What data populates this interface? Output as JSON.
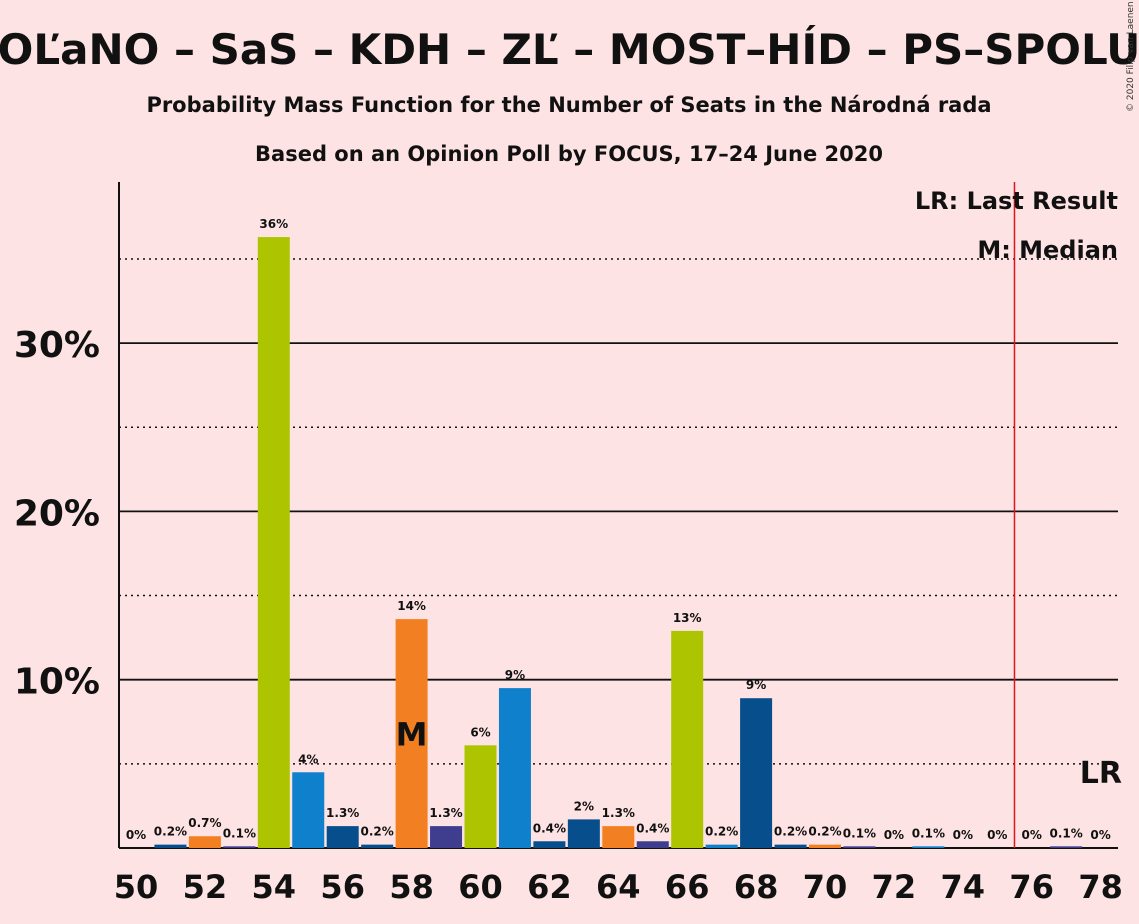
{
  "title": "OĽaNO – SaS – KDH – ZĽ – MOST–HÍD – PS–SPOLU",
  "subtitle": "Probability Mass Function for the Number of Seats in the Národná rada",
  "subtitle2": "Based on an Opinion Poll by FOCUS, 17–24 June 2020",
  "copyright": "© 2020 Filip van Laenen",
  "legend": {
    "lr": "LR: Last Result",
    "median": "M: Median"
  },
  "median_marker": "M",
  "last_result_marker": "LR",
  "colors": {
    "background": "#fde3e3",
    "lime": "#acc500",
    "blue": "#0f80cc",
    "navy": "#064f8c",
    "orange": "#f28022",
    "purple": "#3f3d8e",
    "lr_line": "#e0141c"
  },
  "chart_data": {
    "type": "bar",
    "xlabel": "",
    "ylabel": "",
    "ylim": [
      0,
      39
    ],
    "y_ticks": [
      {
        "value": 10,
        "label": "10%"
      },
      {
        "value": 20,
        "label": "20%"
      },
      {
        "value": 30,
        "label": "30%"
      }
    ],
    "y_dotted": [
      5,
      15,
      25,
      35
    ],
    "x_ticks": [
      "50",
      "52",
      "54",
      "56",
      "58",
      "60",
      "62",
      "64",
      "66",
      "68",
      "70",
      "72",
      "74",
      "76",
      "78"
    ],
    "median_seat": 58,
    "last_result_seat": 75.5,
    "bars": [
      {
        "seat": 50,
        "value": 0,
        "label": "0%",
        "color": "lime"
      },
      {
        "seat": 51,
        "value": 0.2,
        "label": "0.2%",
        "color": "navy"
      },
      {
        "seat": 52,
        "value": 0.7,
        "label": "0.7%",
        "color": "orange"
      },
      {
        "seat": 53,
        "value": 0.1,
        "label": "0.1%",
        "color": "purple"
      },
      {
        "seat": 54,
        "value": 36.3,
        "label": "36%",
        "color": "lime"
      },
      {
        "seat": 55,
        "value": 4.5,
        "label": "4%",
        "color": "blue"
      },
      {
        "seat": 56,
        "value": 1.3,
        "label": "1.3%",
        "color": "navy"
      },
      {
        "seat": 57,
        "value": 0.2,
        "label": "0.2%",
        "color": "navy"
      },
      {
        "seat": 58,
        "value": 13.6,
        "label": "14%",
        "color": "orange"
      },
      {
        "seat": 59,
        "value": 1.3,
        "label": "1.3%",
        "color": "purple"
      },
      {
        "seat": 60,
        "value": 6.1,
        "label": "6%",
        "color": "lime"
      },
      {
        "seat": 61,
        "value": 9.5,
        "label": "9%",
        "color": "blue"
      },
      {
        "seat": 62,
        "value": 0.4,
        "label": "0.4%",
        "color": "navy"
      },
      {
        "seat": 63,
        "value": 1.7,
        "label": "2%",
        "color": "navy"
      },
      {
        "seat": 64,
        "value": 1.3,
        "label": "1.3%",
        "color": "orange"
      },
      {
        "seat": 65,
        "value": 0.4,
        "label": "0.4%",
        "color": "purple"
      },
      {
        "seat": 66,
        "value": 12.9,
        "label": "13%",
        "color": "lime"
      },
      {
        "seat": 67,
        "value": 0.2,
        "label": "0.2%",
        "color": "blue"
      },
      {
        "seat": 68,
        "value": 8.9,
        "label": "9%",
        "color": "navy"
      },
      {
        "seat": 69,
        "value": 0.2,
        "label": "0.2%",
        "color": "navy"
      },
      {
        "seat": 70,
        "value": 0.2,
        "label": "0.2%",
        "color": "orange"
      },
      {
        "seat": 71,
        "value": 0.1,
        "label": "0.1%",
        "color": "purple"
      },
      {
        "seat": 72,
        "value": 0,
        "label": "0%",
        "color": "lime"
      },
      {
        "seat": 73,
        "value": 0.1,
        "label": "0.1%",
        "color": "blue"
      },
      {
        "seat": 74,
        "value": 0,
        "label": "0%",
        "color": "navy"
      },
      {
        "seat": 75,
        "value": 0,
        "label": "0%",
        "color": "navy"
      },
      {
        "seat": 76,
        "value": 0,
        "label": "0%",
        "color": "orange"
      },
      {
        "seat": 77,
        "value": 0.1,
        "label": "0.1%",
        "color": "purple"
      },
      {
        "seat": 78,
        "value": 0,
        "label": "0%",
        "color": "lime"
      }
    ]
  }
}
